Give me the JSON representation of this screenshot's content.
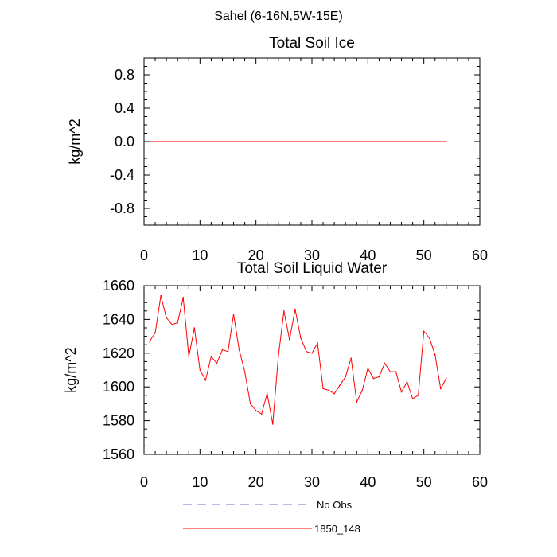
{
  "page_title": "Sahel (6-16N,5W-15E)",
  "chart_data": [
    {
      "type": "line",
      "title": "Total Soil Ice",
      "xlabel": "",
      "ylabel": "kg/m^2",
      "xlim": [
        0,
        60
      ],
      "ylim": [
        -1.0,
        1.0
      ],
      "x_ticks": [
        "0",
        "10",
        "20",
        "30",
        "40",
        "50",
        "60"
      ],
      "y_ticks": [
        "-0.8",
        "-0.4",
        "0.0",
        "0.4",
        "0.8"
      ],
      "grid": false,
      "series": [
        {
          "name": "1850_148",
          "color": "#ff0000",
          "x": [
            1,
            54
          ],
          "y": [
            0.0,
            0.0
          ]
        }
      ]
    },
    {
      "type": "line",
      "title": "Total Soil Liquid Water",
      "xlabel": "",
      "ylabel": "kg/m^2",
      "xlim": [
        0,
        60
      ],
      "ylim": [
        1560,
        1660
      ],
      "x_ticks": [
        "0",
        "10",
        "20",
        "30",
        "40",
        "50",
        "60"
      ],
      "y_ticks": [
        "1560",
        "1580",
        "1600",
        "1620",
        "1640",
        "1660"
      ],
      "grid": false,
      "series": [
        {
          "name": "1850_148",
          "color": "#ff0000",
          "x": [
            1,
            2,
            3,
            4,
            5,
            6,
            7,
            8,
            9,
            10,
            11,
            12,
            13,
            14,
            15,
            16,
            17,
            18,
            19,
            20,
            21,
            22,
            23,
            24,
            25,
            26,
            27,
            28,
            29,
            30,
            31,
            32,
            33,
            34,
            35,
            36,
            37,
            38,
            39,
            40,
            41,
            42,
            43,
            44,
            45,
            46,
            47,
            48,
            49,
            50,
            51,
            52,
            53,
            54
          ],
          "y": [
            1627,
            1632,
            1654,
            1641,
            1637,
            1638,
            1653,
            1618,
            1635,
            1610,
            1604,
            1618,
            1614,
            1622,
            1621,
            1643,
            1622,
            1609,
            1590,
            1586,
            1584,
            1596,
            1578,
            1618,
            1645,
            1628,
            1646,
            1629,
            1621,
            1620,
            1626,
            1599,
            1598,
            1596,
            1601,
            1606,
            1617,
            1591,
            1598,
            1611,
            1605,
            1606,
            1614,
            1609,
            1609,
            1597,
            1603,
            1593,
            1595,
            1633,
            1629,
            1619,
            1599,
            1605
          ]
        }
      ]
    }
  ],
  "legend": {
    "position": "bottom",
    "entries": [
      {
        "label": "No Obs",
        "color": "#7070c0",
        "style": "dashed"
      },
      {
        "label": "1850_148",
        "color": "#ff0000",
        "style": "solid"
      }
    ]
  }
}
